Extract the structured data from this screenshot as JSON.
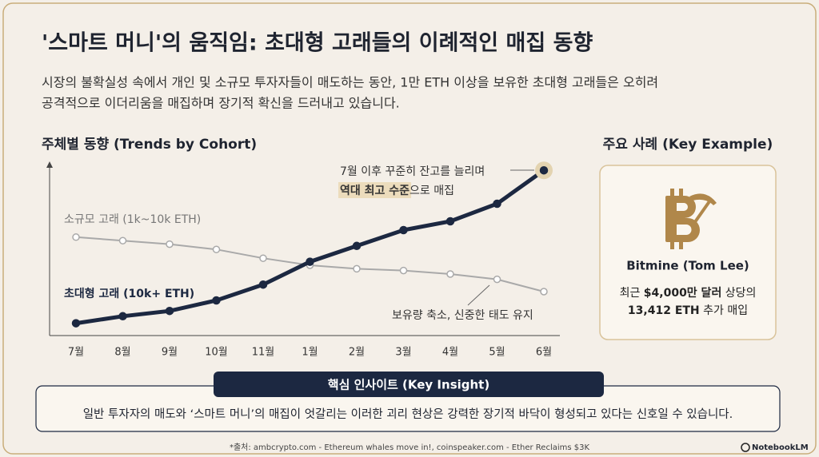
{
  "header": {
    "title": "'스마트 머니'의 움직임: 초대형 고래들의 이례적인 매집 동향",
    "subtitle": [
      "시장의 불확실성 속에서 개인 및 소규모 투자자들이 매도하는 동안, 1만 ETH 이상을 보유한 초대형 고래들은 오히려",
      "공격적으로 이더리움을 매집하며 장기적 확신을 드러내고 있습니다."
    ]
  },
  "chart_data": {
    "type": "line",
    "title": "주체별 동향 (Trends by Cohort)",
    "categories": [
      "7월",
      "8월",
      "9월",
      "10월",
      "11월",
      "1월",
      "2월",
      "3월",
      "4월",
      "5월",
      "6월"
    ],
    "series": [
      {
        "name": "소규모 고래 (1k~10k ETH)",
        "color": "#a9a9a9",
        "values": [
          56,
          54,
          52,
          49,
          44,
          40,
          38,
          37,
          35,
          32,
          25
        ]
      },
      {
        "name": "초대형 고래 (10k+ ETH)",
        "color": "#1c2841",
        "values": [
          7,
          11,
          14,
          20,
          29,
          42,
          51,
          60,
          65,
          75,
          94
        ]
      }
    ],
    "ylim": [
      0,
      100
    ],
    "annotations": {
      "top": [
        "7월 이후 꾸준히 잔고를 늘리며",
        "역대 최고 수준",
        "으로 매집"
      ],
      "bottom": "보유량 축소, 신중한 태도 유지"
    }
  },
  "key_example": {
    "heading": "주요 사례 (Key Example)",
    "name": "Bitmine (Tom Lee)",
    "line1": [
      "최근 ",
      "$4,000만 달러",
      " 상당의"
    ],
    "line2": [
      "13,412 ETH",
      " 추가 매입"
    ]
  },
  "insight": {
    "label": "핵심 인사이트 (Key Insight)",
    "text": "일반 투자자의 매도와 ‘스마트 머니’의 매집이 엇갈리는 이러한 괴리 현상은 강력한 장기적 바닥이 형성되고 있다는 신호일 수 있습니다."
  },
  "footer": {
    "source": "*출처: ambcrypto.com - Ethereum whales move in!, coinspeaker.com - Ether Reclaims $3K",
    "brand": "NotebookLM"
  }
}
